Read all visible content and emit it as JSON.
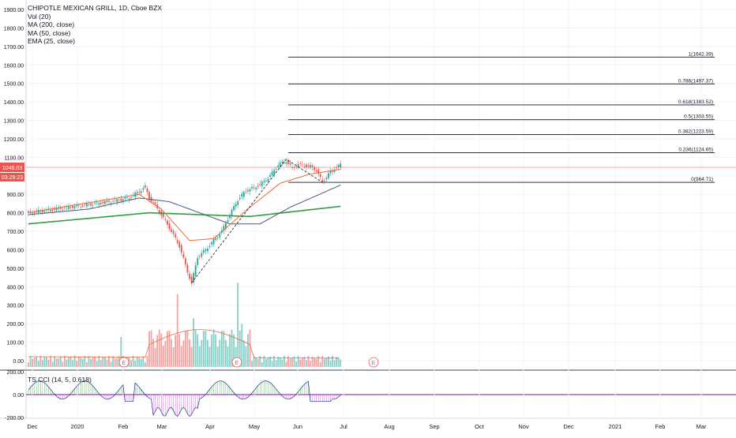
{
  "header": {
    "symbol": "CHIPOTLE MEXICAN GRILL, 1D, Cboe BZX",
    "indicators": [
      "Vol (20)",
      "MA (200, close)",
      "MA (50, close)",
      "EMA (25, close)"
    ]
  },
  "cci_label": "TS CCI (14, 5, 0.618)",
  "colors": {
    "up": "#26a69a",
    "down": "#ef5350",
    "ma200": "#2e9e3f",
    "ma50": "#4a5a7a",
    "ema25": "#ef6a3a",
    "fib": "#131722",
    "price_label": "#ef5350",
    "cci_line": "#8e44ad"
  },
  "price_axis": {
    "ticks": [
      "1900.00",
      "1800.00",
      "1700.00",
      "1600.00",
      "1500.00",
      "1400.00",
      "1300.00",
      "1200.00",
      "1100.00",
      "1000.00",
      "900.00",
      "800.00",
      "700.00",
      "600.00",
      "500.00",
      "400.00",
      "300.00",
      "200.00",
      "100.00",
      "0.00"
    ],
    "current_price": "1046.03",
    "countdown": "03:29:23"
  },
  "cci_axis": {
    "ticks": [
      "200.00",
      "0.00",
      "-200.00"
    ]
  },
  "time_axis": {
    "labels": [
      "Dec",
      "2020",
      "Feb",
      "Mar",
      "Apr",
      "May",
      "Jun",
      "Jul",
      "Aug",
      "Sep",
      "Oct",
      "Nov",
      "Dec",
      "2021",
      "Feb",
      "Mar"
    ]
  },
  "chart_data": {
    "type": "candlestick",
    "title": "CHIPOTLE MEXICAN GRILL, 1D, Cboe BZX",
    "ylim": [
      0,
      1900
    ],
    "fibonacci": [
      {
        "label": "1(1642.39)",
        "value": 1642.39
      },
      {
        "label": "0.786(1497.37)",
        "value": 1497.37
      },
      {
        "label": "0.618(1383.52)",
        "value": 1383.52
      },
      {
        "label": "0.5(1303.55)",
        "value": 1303.55
      },
      {
        "label": "0.382(1223.59)",
        "value": 1223.59
      },
      {
        "label": "0.236(1124.65)",
        "value": 1124.65
      },
      {
        "label": "0(964.71)",
        "value": 964.71
      }
    ],
    "price_path": [
      {
        "d": 0,
        "p": 800
      },
      {
        "d": 10,
        "p": 815
      },
      {
        "d": 20,
        "p": 830
      },
      {
        "d": 30,
        "p": 845
      },
      {
        "d": 40,
        "p": 860
      },
      {
        "d": 50,
        "p": 880
      },
      {
        "d": 55,
        "p": 915
      },
      {
        "d": 58,
        "p": 940
      },
      {
        "d": 60,
        "p": 880
      },
      {
        "d": 63,
        "p": 840
      },
      {
        "d": 66,
        "p": 790
      },
      {
        "d": 70,
        "p": 720
      },
      {
        "d": 75,
        "p": 620
      },
      {
        "d": 79,
        "p": 480
      },
      {
        "d": 81,
        "p": 420
      },
      {
        "d": 84,
        "p": 560
      },
      {
        "d": 88,
        "p": 600
      },
      {
        "d": 92,
        "p": 650
      },
      {
        "d": 96,
        "p": 700
      },
      {
        "d": 100,
        "p": 790
      },
      {
        "d": 104,
        "p": 870
      },
      {
        "d": 108,
        "p": 920
      },
      {
        "d": 112,
        "p": 935
      },
      {
        "d": 116,
        "p": 960
      },
      {
        "d": 120,
        "p": 1000
      },
      {
        "d": 124,
        "p": 1060
      },
      {
        "d": 128,
        "p": 1080
      },
      {
        "d": 131,
        "p": 1040
      },
      {
        "d": 134,
        "p": 1065
      },
      {
        "d": 137,
        "p": 1055
      },
      {
        "d": 140,
        "p": 1050
      },
      {
        "d": 143,
        "p": 1030
      },
      {
        "d": 146,
        "p": 965
      },
      {
        "d": 149,
        "p": 1010
      },
      {
        "d": 152,
        "p": 1040
      },
      {
        "d": 155,
        "p": 1060
      }
    ],
    "ma200": [
      {
        "d": 0,
        "p": 740
      },
      {
        "d": 60,
        "p": 800
      },
      {
        "d": 110,
        "p": 780
      },
      {
        "d": 155,
        "p": 835
      }
    ],
    "ma50": [
      {
        "d": 0,
        "p": 790
      },
      {
        "d": 30,
        "p": 820
      },
      {
        "d": 55,
        "p": 880
      },
      {
        "d": 70,
        "p": 860
      },
      {
        "d": 85,
        "p": 800
      },
      {
        "d": 100,
        "p": 740
      },
      {
        "d": 115,
        "p": 740
      },
      {
        "d": 130,
        "p": 830
      },
      {
        "d": 155,
        "p": 950
      }
    ],
    "ema25": [
      {
        "d": 0,
        "p": 800
      },
      {
        "d": 55,
        "p": 900
      },
      {
        "d": 66,
        "p": 820
      },
      {
        "d": 80,
        "p": 650
      },
      {
        "d": 92,
        "p": 660
      },
      {
        "d": 110,
        "p": 830
      },
      {
        "d": 125,
        "p": 960
      },
      {
        "d": 140,
        "p": 1010
      },
      {
        "d": 155,
        "p": 1035
      }
    ],
    "volume_ylim": [
      0,
      460
    ],
    "volume_spikes": [
      {
        "d": 46,
        "v": 160
      },
      {
        "d": 74,
        "v": 390
      },
      {
        "d": 82,
        "v": 260
      },
      {
        "d": 104,
        "v": 450
      },
      {
        "d": 106,
        "v": 230
      }
    ]
  }
}
